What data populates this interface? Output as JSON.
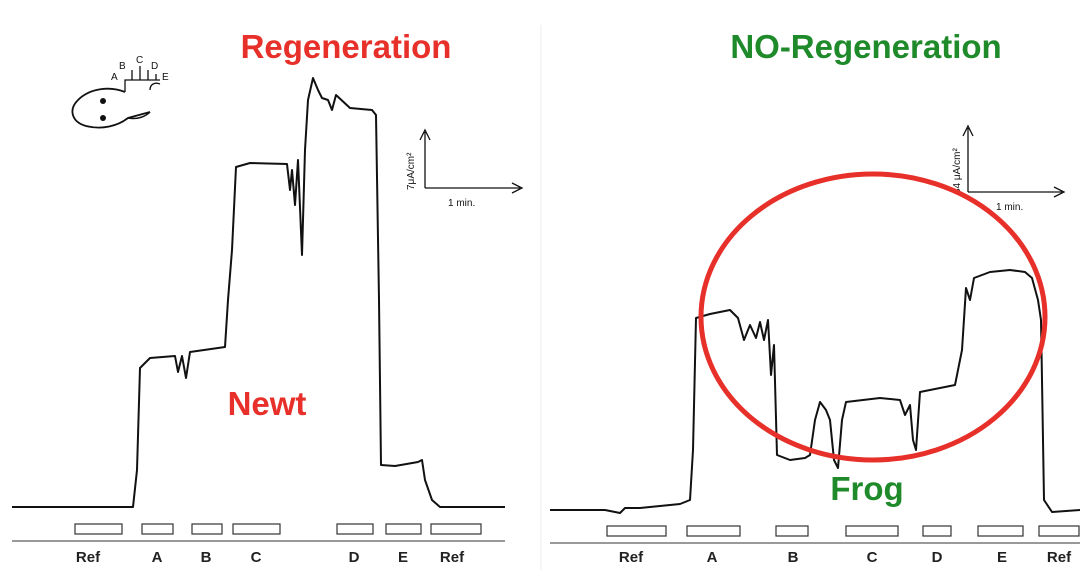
{
  "panels": [
    {
      "title": "Regeneration",
      "animal": "Newt",
      "scale": {
        "current": "7μA/cm²",
        "time": "1 min."
      },
      "electrodes": [
        "Ref",
        "A",
        "B",
        "C",
        "D",
        "E",
        "Ref"
      ]
    },
    {
      "title": "NO-Regeneration",
      "animal": "Frog",
      "scale": {
        "current": "34 μA/cm²",
        "time": "1 min."
      },
      "electrodes": [
        "Ref",
        "A",
        "B",
        "C",
        "D",
        "E",
        "Ref"
      ]
    }
  ],
  "diagram_labels": [
    "A",
    "B",
    "C",
    "D",
    "E"
  ]
}
